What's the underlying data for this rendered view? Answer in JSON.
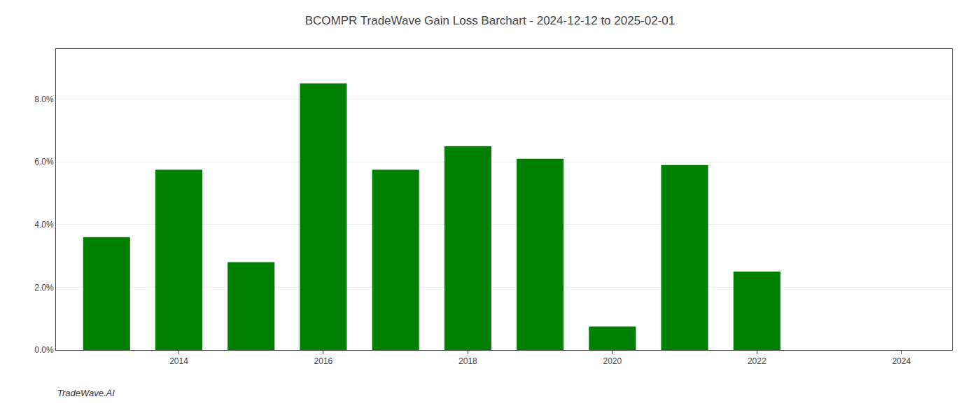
{
  "chart_data": {
    "type": "bar",
    "title": "BCOMPR TradeWave Gain Loss Barchart - 2024-12-12 to 2025-02-01",
    "annotations": [
      "TradeWave.AI"
    ],
    "x": [
      2013,
      2014,
      2015,
      2016,
      2017,
      2018,
      2019,
      2020,
      2021,
      2022,
      2023
    ],
    "values": [
      0.036,
      0.0575,
      0.028,
      0.085,
      0.0575,
      0.065,
      0.061,
      0.0075,
      0.059,
      0.025,
      0.0
    ],
    "color": "#008000",
    "xlim": [
      2012.3,
      2024.7
    ],
    "xticks": [
      2014,
      2016,
      2018,
      2020,
      2022,
      2024
    ],
    "ylim": [
      0,
      0.096
    ],
    "yticks": [
      {
        "value": 0.0,
        "label": "0.0%"
      },
      {
        "value": 0.02,
        "label": "2.0%"
      },
      {
        "value": 0.04,
        "label": "4.0%"
      },
      {
        "value": 0.06,
        "label": "6.0%"
      },
      {
        "value": 0.08,
        "label": "8.0%"
      }
    ],
    "grid": true
  }
}
